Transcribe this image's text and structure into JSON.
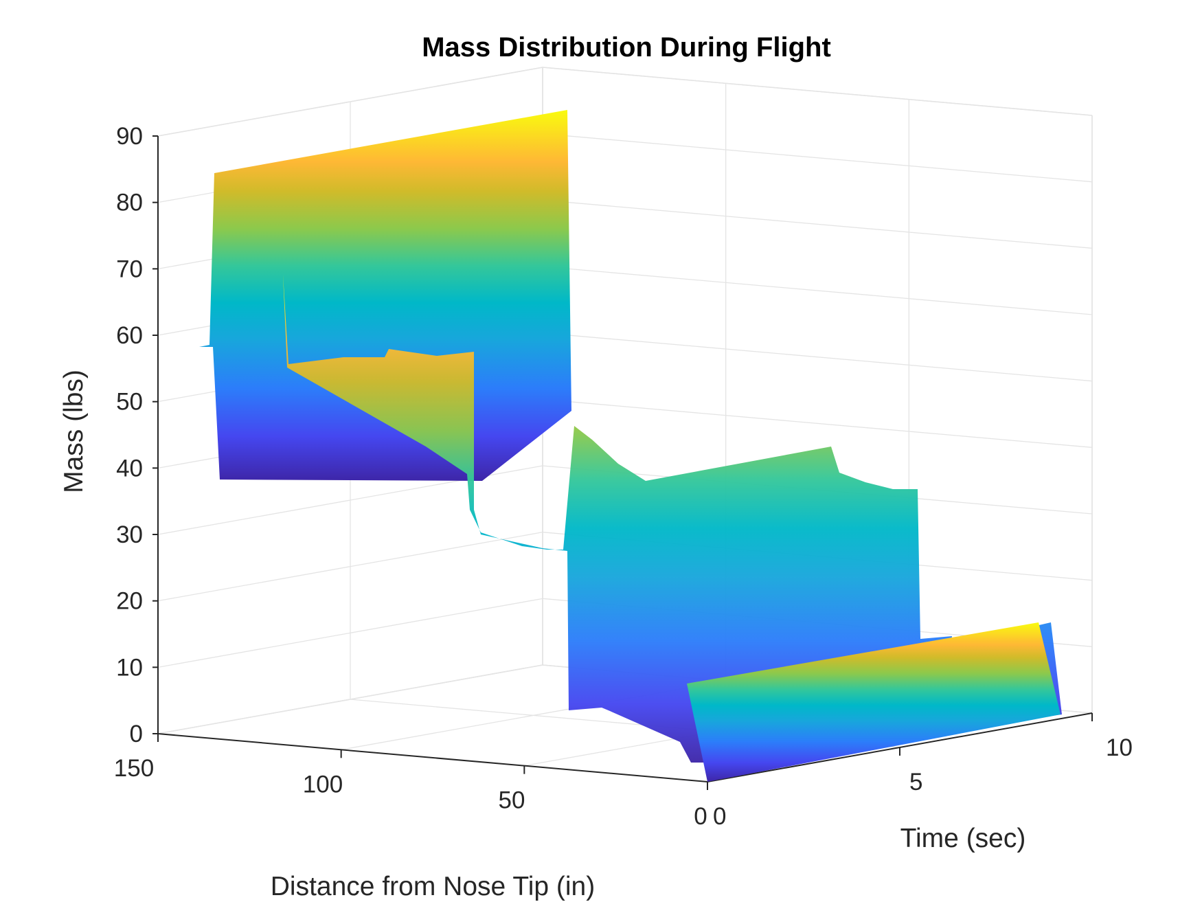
{
  "chart_data": {
    "type": "surface3d",
    "title": "Mass Distribution During Flight",
    "xlabel": "Distance from Nose Tip (in)",
    "ylabel": "Time (sec)",
    "zlabel": "Mass (lbs)",
    "x_ticks": [
      "150",
      "100",
      "50",
      "0"
    ],
    "y_ticks": [
      "0",
      "5",
      "10"
    ],
    "z_ticks": [
      "0",
      "10",
      "20",
      "30",
      "40",
      "50",
      "60",
      "70",
      "80",
      "90"
    ],
    "xlim": [
      0,
      150
    ],
    "ylim": [
      0,
      10
    ],
    "zlim": [
      0,
      90
    ],
    "grid": true,
    "colormap": "parula",
    "surface_profile": {
      "description_fields": [
        "distance_in",
        "mass_at_t0_lbs",
        "mass_at_t10_lbs"
      ],
      "points": [
        [
          140,
          85,
          55
        ],
        [
          138,
          85,
          44
        ],
        [
          118,
          68,
          50
        ],
        [
          115,
          58,
          42
        ],
        [
          78,
          58,
          38
        ],
        [
          75,
          30,
          32
        ],
        [
          40,
          25,
          20
        ],
        [
          38,
          3,
          3
        ],
        [
          35,
          0,
          0
        ],
        [
          33,
          15,
          20
        ],
        [
          2,
          15,
          15
        ],
        [
          0,
          0,
          0
        ]
      ]
    },
    "colors": {
      "high": "#f9fb0e",
      "mid": "#00b8c8",
      "low": "#3e26a8"
    }
  }
}
